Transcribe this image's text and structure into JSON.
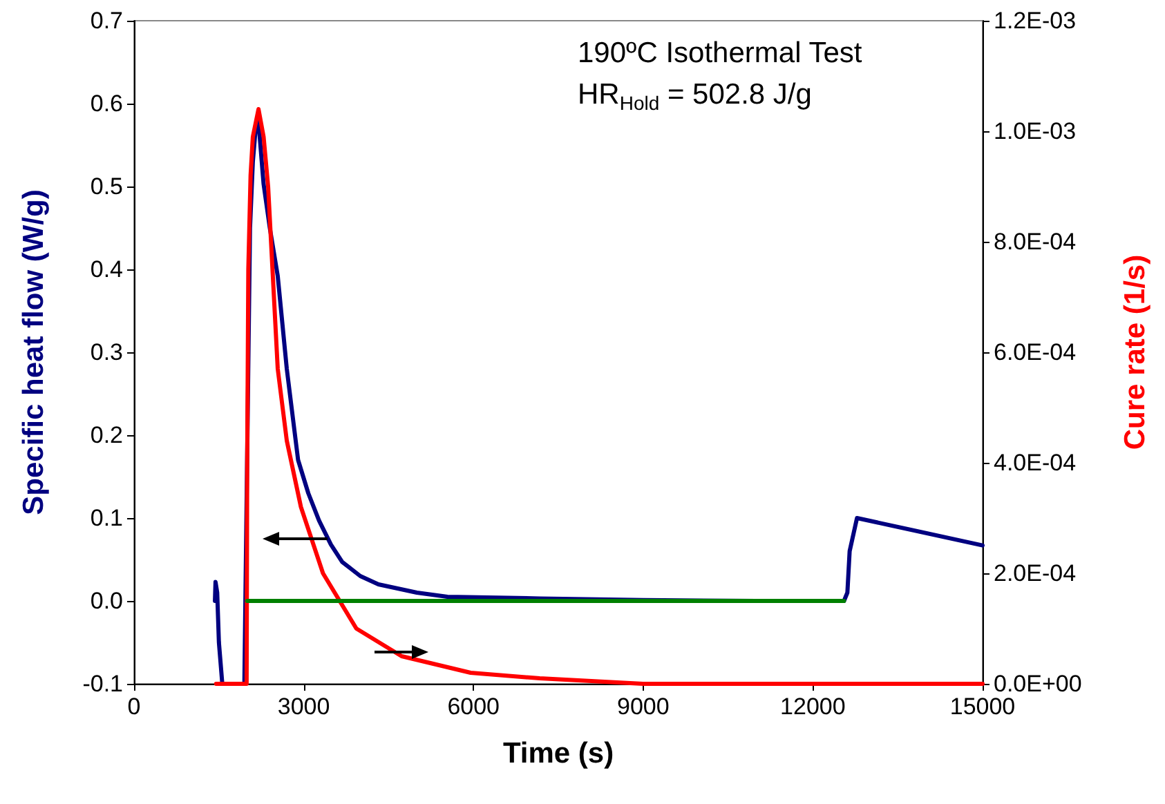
{
  "chart_data": {
    "type": "line",
    "xlabel": "Time (s)",
    "ylabel": "Specific heat flow (W/g)",
    "y2label": "Cure rate (1/s)",
    "annotations": [
      "190ºC Isothermal Test",
      "HR$_{Hold}$ = 502.8 J/g"
    ],
    "xlim": [
      0,
      15000
    ],
    "xticks": [
      0,
      3000,
      6000,
      9000,
      12000,
      15000
    ],
    "ylim": [
      -0.1,
      0.7
    ],
    "yticks": [
      {
        "value": -0.1,
        "label": "-0.1"
      },
      {
        "value": 0,
        "label": "0.0"
      },
      {
        "value": 0.1,
        "label": "0.1"
      },
      {
        "value": 0.2,
        "label": "0.2"
      },
      {
        "value": 0.3,
        "label": "0.3"
      },
      {
        "value": 0.4,
        "label": "0.4"
      },
      {
        "value": 0.5,
        "label": "0.5"
      },
      {
        "value": 0.6,
        "label": "0.6"
      },
      {
        "value": 0.7,
        "label": "0.7"
      }
    ],
    "y2lim": [
      0,
      0.0012
    ],
    "y2ticks": [
      {
        "value": 0,
        "label": "0.0E+00"
      },
      {
        "value": 0.0002,
        "label": "2.0E-04"
      },
      {
        "value": 0.0004,
        "label": "4.0E-04"
      },
      {
        "value": 0.0006,
        "label": "6.0E-04"
      },
      {
        "value": 0.0008,
        "label": "8.0E-04"
      },
      {
        "value": 0.001,
        "label": "1.0E-03"
      },
      {
        "value": 0.0012,
        "label": "1.2E-03"
      }
    ],
    "grid": false,
    "marker": "none",
    "line_style": "solid",
    "series": [
      {
        "color": "#000080",
        "x": [
          1430,
          1440,
          1470,
          1500,
          1560,
          1950,
          2050,
          2100,
          2150,
          2200,
          2290,
          2400,
          2540,
          2700,
          2900,
          3080,
          3270,
          3480,
          3680,
          4000,
          4320,
          5000,
          5540,
          7170,
          9000,
          11000,
          12550,
          12610,
          12650,
          12780,
          15000
        ],
        "values": [
          0,
          0.023,
          0.01,
          -0.05,
          -0.1,
          -0.1,
          0.45,
          0.53,
          0.57,
          0.578,
          0.503,
          0.45,
          0.392,
          0.28,
          0.17,
          0.13,
          0.097,
          0.068,
          0.047,
          0.03,
          0.02,
          0.01,
          0.005,
          0.003,
          0.001,
          0,
          0,
          0.01,
          0.06,
          0.1,
          0.067
        ]
      },
      {
        "color": "#ff0000",
        "axis": "y2",
        "x": [
          1450,
          1990,
          2000,
          2020,
          2060,
          2100,
          2200,
          2290,
          2370,
          2540,
          2700,
          2950,
          3340,
          3930,
          4730,
          5950,
          7170,
          9000,
          12000,
          15000
        ],
        "values": [
          0,
          0,
          0.0004,
          0.00075,
          0.00092,
          0.00099,
          0.00104,
          0.00099,
          0.0009,
          0.00057,
          0.00044,
          0.00032,
          0.0002,
          0.0001,
          5e-05,
          2e-05,
          1e-05,
          0,
          0,
          0
        ]
      },
      {
        "color": "#008000",
        "x": [
          2000,
          12550
        ],
        "values": [
          0,
          0
        ]
      }
    ]
  }
}
